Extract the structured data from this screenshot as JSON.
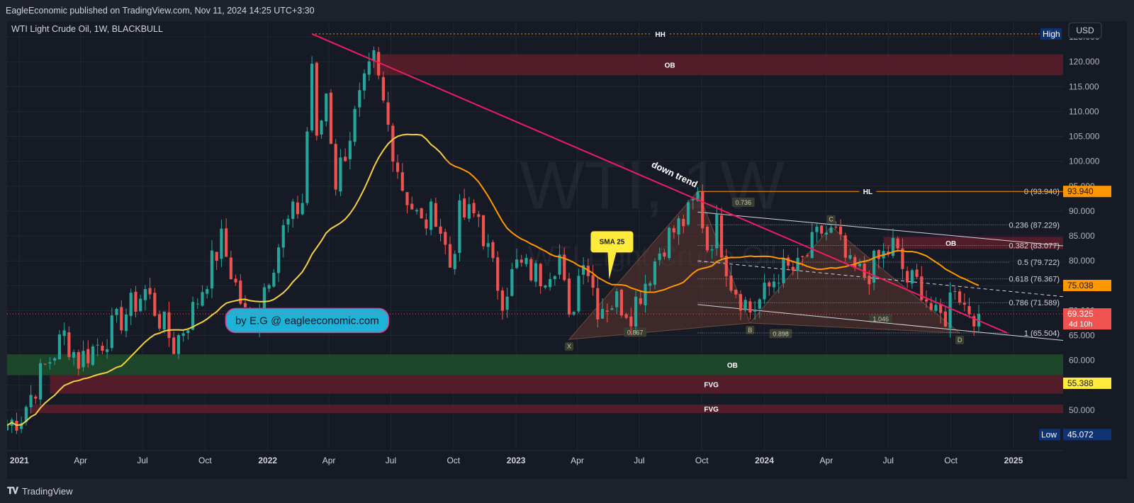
{
  "header": {
    "published": "EagleEconomic published on TradingView.com, Nov 11, 2024 14:25 UTC+3:30"
  },
  "footer": {
    "brand": "TradingView"
  },
  "colors": {
    "background": "#161a25",
    "panel": "#1e222d",
    "up": "#26a69a",
    "down": "#ef5350",
    "sma": "#f5d142",
    "sma_late": "#ff9800",
    "trend": "#e91e63",
    "ob_red": "#5d1d2a",
    "ob_green": "#1e4d2b",
    "callout": "#1fb2d9"
  },
  "chart_data": {
    "type": "candlestick",
    "symbol_line": "WTI Light Crude Oil, 1W, BLACKBULL",
    "watermark_main": "WTI, 1W",
    "watermark_sub": "WTI Light Crude Oil",
    "currency": "USD",
    "ylim": [
      43,
      127
    ],
    "yticks": [
      50,
      55,
      60,
      65,
      70,
      75,
      80,
      85,
      90,
      95,
      100,
      105,
      110,
      115,
      120,
      125
    ],
    "ytick_labels": [
      "50.000",
      "55.000",
      "60.000",
      "65.000",
      "70.000",
      "75.000",
      "80.000",
      "85.000",
      "90.000",
      "95.000",
      "100.000",
      "105.000",
      "110.000",
      "115.000",
      "120.000",
      "125.000"
    ],
    "xlim": [
      "2020-12-14",
      "2025-03-15"
    ],
    "xticks": [
      {
        "date": "2021-01-01",
        "label": "2021",
        "bold": true
      },
      {
        "date": "2021-04-01",
        "label": "Apr"
      },
      {
        "date": "2021-07-01",
        "label": "Jul"
      },
      {
        "date": "2021-10-01",
        "label": "Oct"
      },
      {
        "date": "2022-01-01",
        "label": "2022",
        "bold": true
      },
      {
        "date": "2022-04-01",
        "label": "Apr"
      },
      {
        "date": "2022-07-01",
        "label": "Jul"
      },
      {
        "date": "2022-10-01",
        "label": "Oct"
      },
      {
        "date": "2023-01-01",
        "label": "2023",
        "bold": true
      },
      {
        "date": "2023-04-01",
        "label": "Apr"
      },
      {
        "date": "2023-07-01",
        "label": "Jul"
      },
      {
        "date": "2023-10-01",
        "label": "Oct"
      },
      {
        "date": "2024-01-01",
        "label": "2024",
        "bold": true
      },
      {
        "date": "2024-04-01",
        "label": "Apr"
      },
      {
        "date": "2024-07-01",
        "label": "Jul"
      },
      {
        "date": "2024-10-01",
        "label": "Oct"
      },
      {
        "date": "2025-01-01",
        "label": "2025",
        "bold": true
      }
    ],
    "close_series": {
      "start": "2020-12-14",
      "anchors": [
        [
          "2020-12-14",
          47
        ],
        [
          "2021-01-04",
          49
        ],
        [
          "2021-02-01",
          57
        ],
        [
          "2021-03-08",
          65
        ],
        [
          "2021-03-29",
          60
        ],
        [
          "2021-05-03",
          64
        ],
        [
          "2021-07-05",
          74
        ],
        [
          "2021-08-16",
          63
        ],
        [
          "2021-09-13",
          70
        ],
        [
          "2021-10-25",
          84
        ],
        [
          "2021-12-06",
          66
        ],
        [
          "2021-12-27",
          75
        ],
        [
          "2022-01-24",
          86
        ],
        [
          "2022-02-21",
          92
        ],
        [
          "2022-03-07",
          120
        ],
        [
          "2022-03-14",
          103
        ],
        [
          "2022-03-28",
          114
        ],
        [
          "2022-04-11",
          96
        ],
        [
          "2022-05-16",
          112
        ],
        [
          "2022-06-06",
          120
        ],
        [
          "2022-06-27",
          107
        ],
        [
          "2022-07-18",
          95
        ],
        [
          "2022-08-15",
          87
        ],
        [
          "2022-09-05",
          90
        ],
        [
          "2022-09-26",
          79
        ],
        [
          "2022-10-10",
          89
        ],
        [
          "2022-11-07",
          89
        ],
        [
          "2022-11-28",
          78
        ],
        [
          "2022-12-12",
          73
        ],
        [
          "2023-01-02",
          79
        ],
        [
          "2023-02-06",
          77
        ],
        [
          "2023-03-06",
          81
        ],
        [
          "2023-03-20",
          67
        ],
        [
          "2023-04-10",
          82
        ],
        [
          "2023-05-01",
          71
        ],
        [
          "2023-05-29",
          72
        ],
        [
          "2023-06-19",
          70
        ],
        [
          "2023-07-10",
          76
        ],
        [
          "2023-08-07",
          84
        ],
        [
          "2023-09-11",
          89
        ],
        [
          "2023-09-25",
          93
        ],
        [
          "2023-10-09",
          83
        ],
        [
          "2023-10-23",
          87
        ],
        [
          "2023-11-13",
          76
        ],
        [
          "2023-12-11",
          70
        ],
        [
          "2024-01-01",
          73
        ],
        [
          "2024-01-22",
          78
        ],
        [
          "2024-02-19",
          78
        ],
        [
          "2024-03-25",
          86
        ],
        [
          "2024-04-15",
          85
        ],
        [
          "2024-05-06",
          78
        ],
        [
          "2024-05-27",
          77
        ],
        [
          "2024-06-17",
          80
        ],
        [
          "2024-07-08",
          83
        ],
        [
          "2024-07-29",
          76
        ],
        [
          "2024-08-19",
          75
        ],
        [
          "2024-09-09",
          68
        ],
        [
          "2024-09-23",
          69
        ],
        [
          "2024-10-07",
          76
        ],
        [
          "2024-10-21",
          71
        ],
        [
          "2024-11-11",
          69.325
        ]
      ],
      "amplitude": 3.2,
      "seed": 7
    },
    "sma": {
      "name": "SMA 25",
      "period": 25,
      "end_value": 75.038
    },
    "price_labels": [
      {
        "value": 125.6,
        "text": "High",
        "bg": "#0f3273",
        "fg": "#ffffff"
      },
      {
        "value": 93.94,
        "text": "93.940",
        "bg": "#ff9800",
        "fg": "#131722"
      },
      {
        "value": 75.038,
        "text": "75.038",
        "bg": "#ff9800",
        "fg": "#131722"
      },
      {
        "value": 69.325,
        "text": "69.325",
        "sub": "4d 10h",
        "bg": "#ef5350",
        "fg": "#ffffff"
      },
      {
        "value": 55.388,
        "text": "55.388",
        "bg": "#ffeb3b",
        "fg": "#131722"
      },
      {
        "value": 45.072,
        "text": "45.072",
        "sub_prefix": "Low",
        "bg": "#0f3273",
        "fg": "#ffffff"
      }
    ],
    "zones": [
      {
        "label": "OB",
        "y_top": 121.5,
        "y_bot": 117.3,
        "x_start": "2022-06-06",
        "x_end": "2025-05-01",
        "color": "#5d1d2a",
        "label_at": "2023-08-15"
      },
      {
        "label": "OB",
        "y_top": 61.2,
        "y_bot": 57.0,
        "x_start": "2020-12-14",
        "x_end": "2025-05-01",
        "color": "#1e4d2b",
        "label_at": "2023-11-15"
      },
      {
        "label": "FVG",
        "y_top": 57.0,
        "y_bot": 53.3,
        "x_start": "2021-02-15",
        "x_end": "2025-05-01",
        "color": "#5d1d2a",
        "label_at": "2023-10-15"
      },
      {
        "label": "FVG",
        "y_top": 51.1,
        "y_bot": 49.4,
        "x_start": "2021-01-18",
        "x_end": "2025-05-01",
        "color": "#5d1d2a",
        "label_at": "2023-10-15"
      },
      {
        "label": "OB",
        "y_top": 84.8,
        "y_bot": 82.4,
        "x_start": "2024-06-24",
        "x_end": "2025-05-01",
        "color": "#5d1d2a",
        "label_at": "2024-10-01"
      }
    ],
    "levels": [
      {
        "label": "HH",
        "value": 125.6,
        "x_start": "2022-03-07",
        "color": "#ff9800",
        "dotted": true,
        "label_at": "2023-08-01"
      },
      {
        "label": "HL",
        "value": 93.94,
        "x_start": "2023-09-25",
        "color": "#ff9800",
        "dotted": false,
        "label_at": "2024-06-01"
      }
    ],
    "fib": {
      "x_start": "2023-09-25",
      "x_end": "2025-03-15",
      "levels": [
        {
          "ratio": "0",
          "value": 93.94,
          "text": "0 (93.940)"
        },
        {
          "ratio": "0.236",
          "value": 87.229,
          "text": "0.236 (87.229)"
        },
        {
          "ratio": "0.382",
          "value": 83.077,
          "text": "0.382 (83.077)"
        },
        {
          "ratio": "0.5",
          "value": 79.722,
          "text": "0.5 (79.722)"
        },
        {
          "ratio": "0.618",
          "value": 76.367,
          "text": "0.618 (76.367)"
        },
        {
          "ratio": "0.786",
          "value": 71.589,
          "text": "0.786 (71.589)"
        },
        {
          "ratio": "1",
          "value": 65.504,
          "text": "1 (65.504)"
        }
      ]
    },
    "trendline": {
      "label": "down trend",
      "from": [
        "2022-03-07",
        125.6
      ],
      "to": [
        "2024-12-23",
        65.5
      ],
      "label_at": [
        "2023-08-20",
        96.8
      ]
    },
    "channel": {
      "upper": {
        "from": [
          "2023-09-25",
          89.8
        ],
        "to": [
          "2025-03-15",
          83.0
        ]
      },
      "mid": {
        "from": [
          "2023-09-25",
          80.0
        ],
        "to": [
          "2025-03-15",
          72.8
        ]
      },
      "lower": {
        "from": [
          "2023-09-25",
          71.2
        ],
        "to": [
          "2025-03-15",
          64.0
        ]
      }
    },
    "harmonic_1": {
      "points": [
        [
          "2023-03-20",
          64.2,
          "X"
        ],
        [
          "2023-09-25",
          93.94,
          ""
        ],
        [
          "2023-12-11",
          67.5,
          "B"
        ],
        [
          "2024-04-08",
          86.9,
          "C"
        ],
        [
          "2024-10-14",
          65.5,
          "D"
        ]
      ],
      "ratios": [
        {
          "text": "0.867",
          "at": [
            "2023-06-25",
            65.6
          ]
        },
        {
          "text": "0.736",
          "at": [
            "2023-12-01",
            91.7
          ]
        },
        {
          "text": "0.898",
          "at": [
            "2024-01-25",
            65.3
          ]
        },
        {
          "text": "1.046",
          "at": [
            "2024-06-20",
            68.3
          ]
        }
      ]
    },
    "callout": {
      "text": "SMA 25",
      "at": [
        "2023-05-22",
        83.8
      ]
    },
    "banner": {
      "text": "by E.G @ eagleeconomic.com",
      "at": [
        "2022-02-28",
        68.0
      ]
    }
  }
}
